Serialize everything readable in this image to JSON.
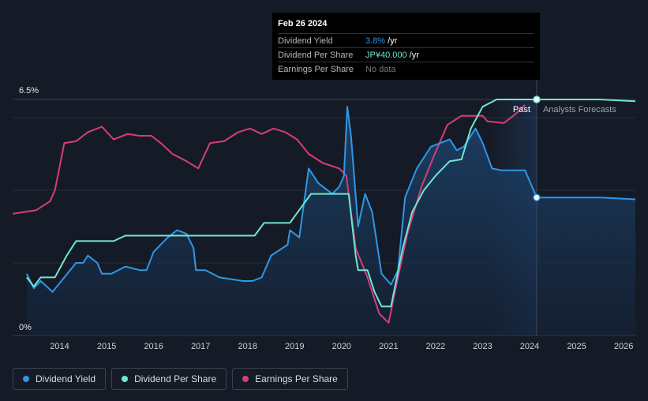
{
  "tooltip": {
    "date": "Feb 26 2024",
    "rows": [
      {
        "label": "Dividend Yield",
        "value": "3.8%",
        "unit": " /yr"
      },
      {
        "label": "Dividend Per Share",
        "value": "JP¥40.000",
        "unit": " /yr"
      },
      {
        "label": "Earnings Per Share",
        "value": "No data",
        "unit": ""
      }
    ]
  },
  "chart_data": {
    "type": "line",
    "y_axis_labels": [
      "6.5%",
      "0%"
    ],
    "ylim": [
      0,
      6.5
    ],
    "xlim": [
      2013.0,
      2026.25
    ],
    "x_ticks": [
      2014,
      2015,
      2016,
      2017,
      2018,
      2019,
      2020,
      2021,
      2022,
      2023,
      2024,
      2025,
      2026
    ],
    "divider_x": 2024.15,
    "forecast_start": 2023.15,
    "past_label": "Past",
    "forecast_label": "Analysts Forecasts",
    "series": [
      {
        "name": "Dividend Yield",
        "color": "#2f96e6",
        "points": [
          [
            2013.3,
            1.7
          ],
          [
            2013.45,
            1.3
          ],
          [
            2013.6,
            1.5
          ],
          [
            2013.85,
            1.2
          ],
          [
            2014.1,
            1.6
          ],
          [
            2014.35,
            2.0
          ],
          [
            2014.5,
            2.0
          ],
          [
            2014.6,
            2.2
          ],
          [
            2014.8,
            2.0
          ],
          [
            2014.9,
            1.7
          ],
          [
            2015.1,
            1.7
          ],
          [
            2015.4,
            1.9
          ],
          [
            2015.7,
            1.8
          ],
          [
            2015.85,
            1.8
          ],
          [
            2016.0,
            2.3
          ],
          [
            2016.3,
            2.7
          ],
          [
            2016.5,
            2.9
          ],
          [
            2016.7,
            2.8
          ],
          [
            2016.85,
            2.4
          ],
          [
            2016.9,
            1.8
          ],
          [
            2017.1,
            1.8
          ],
          [
            2017.4,
            1.6
          ],
          [
            2017.9,
            1.5
          ],
          [
            2018.1,
            1.5
          ],
          [
            2018.3,
            1.6
          ],
          [
            2018.5,
            2.2
          ],
          [
            2018.85,
            2.5
          ],
          [
            2018.9,
            2.9
          ],
          [
            2019.1,
            2.7
          ],
          [
            2019.3,
            4.6
          ],
          [
            2019.5,
            4.2
          ],
          [
            2019.8,
            3.9
          ],
          [
            2019.95,
            4.1
          ],
          [
            2020.05,
            4.4
          ],
          [
            2020.12,
            6.3
          ],
          [
            2020.2,
            5.5
          ],
          [
            2020.35,
            3.0
          ],
          [
            2020.5,
            3.9
          ],
          [
            2020.65,
            3.4
          ],
          [
            2020.85,
            1.7
          ],
          [
            2021.05,
            1.4
          ],
          [
            2021.2,
            1.8
          ],
          [
            2021.35,
            3.8
          ],
          [
            2021.6,
            4.6
          ],
          [
            2021.9,
            5.2
          ],
          [
            2022.3,
            5.4
          ],
          [
            2022.45,
            5.1
          ],
          [
            2022.6,
            5.2
          ],
          [
            2022.85,
            5.7
          ],
          [
            2023.0,
            5.3
          ],
          [
            2023.2,
            4.6
          ],
          [
            2023.4,
            4.55
          ],
          [
            2023.9,
            4.55
          ],
          [
            2024.15,
            3.8
          ],
          [
            2025.5,
            3.8
          ],
          [
            2026.25,
            3.75
          ]
        ]
      },
      {
        "name": "Dividend Per Share",
        "color": "#6ee7cf",
        "points": [
          [
            2013.3,
            1.6
          ],
          [
            2013.45,
            1.35
          ],
          [
            2013.6,
            1.6
          ],
          [
            2013.9,
            1.6
          ],
          [
            2014.15,
            2.2
          ],
          [
            2014.35,
            2.6
          ],
          [
            2015.15,
            2.6
          ],
          [
            2015.4,
            2.75
          ],
          [
            2018.15,
            2.75
          ],
          [
            2018.35,
            3.1
          ],
          [
            2018.9,
            3.1
          ],
          [
            2019.35,
            3.9
          ],
          [
            2020.15,
            3.9
          ],
          [
            2020.3,
            2.2
          ],
          [
            2020.35,
            1.8
          ],
          [
            2020.55,
            1.8
          ],
          [
            2020.7,
            1.2
          ],
          [
            2020.85,
            0.8
          ],
          [
            2021.05,
            0.8
          ],
          [
            2021.3,
            2.4
          ],
          [
            2021.5,
            3.4
          ],
          [
            2021.75,
            4.0
          ],
          [
            2022.0,
            4.4
          ],
          [
            2022.3,
            4.8
          ],
          [
            2022.55,
            4.85
          ],
          [
            2022.75,
            5.7
          ],
          [
            2023.0,
            6.3
          ],
          [
            2023.3,
            6.5
          ],
          [
            2024.15,
            6.5
          ],
          [
            2025.5,
            6.5
          ],
          [
            2026.25,
            6.45
          ]
        ]
      },
      {
        "name": "Earnings Per Share",
        "color": "#d63c7a",
        "points": [
          [
            2013.0,
            3.35
          ],
          [
            2013.5,
            3.45
          ],
          [
            2013.8,
            3.7
          ],
          [
            2013.9,
            4.0
          ],
          [
            2014.1,
            5.3
          ],
          [
            2014.35,
            5.35
          ],
          [
            2014.6,
            5.6
          ],
          [
            2014.9,
            5.75
          ],
          [
            2015.15,
            5.4
          ],
          [
            2015.45,
            5.55
          ],
          [
            2015.7,
            5.5
          ],
          [
            2015.95,
            5.5
          ],
          [
            2016.15,
            5.3
          ],
          [
            2016.4,
            5.0
          ],
          [
            2016.7,
            4.8
          ],
          [
            2016.95,
            4.6
          ],
          [
            2017.2,
            5.3
          ],
          [
            2017.5,
            5.35
          ],
          [
            2017.8,
            5.6
          ],
          [
            2018.05,
            5.7
          ],
          [
            2018.3,
            5.55
          ],
          [
            2018.55,
            5.7
          ],
          [
            2018.8,
            5.6
          ],
          [
            2019.05,
            5.4
          ],
          [
            2019.3,
            5.0
          ],
          [
            2019.6,
            4.75
          ],
          [
            2019.95,
            4.6
          ],
          [
            2020.1,
            4.4
          ],
          [
            2020.3,
            2.4
          ],
          [
            2020.55,
            1.6
          ],
          [
            2020.8,
            0.6
          ],
          [
            2021.0,
            0.35
          ],
          [
            2021.15,
            1.3
          ],
          [
            2021.4,
            2.8
          ],
          [
            2021.7,
            4.1
          ],
          [
            2021.95,
            4.9
          ],
          [
            2022.25,
            5.8
          ],
          [
            2022.55,
            6.05
          ],
          [
            2023.0,
            6.05
          ],
          [
            2023.1,
            5.9
          ],
          [
            2023.45,
            5.85
          ],
          [
            2023.7,
            6.1
          ],
          [
            2023.9,
            6.35
          ]
        ]
      }
    ]
  },
  "legend": [
    {
      "label": "Dividend Yield",
      "color": "#2f96e6"
    },
    {
      "label": "Dividend Per Share",
      "color": "#6ee7cf"
    },
    {
      "label": "Earnings Per Share",
      "color": "#d63c7a"
    }
  ]
}
